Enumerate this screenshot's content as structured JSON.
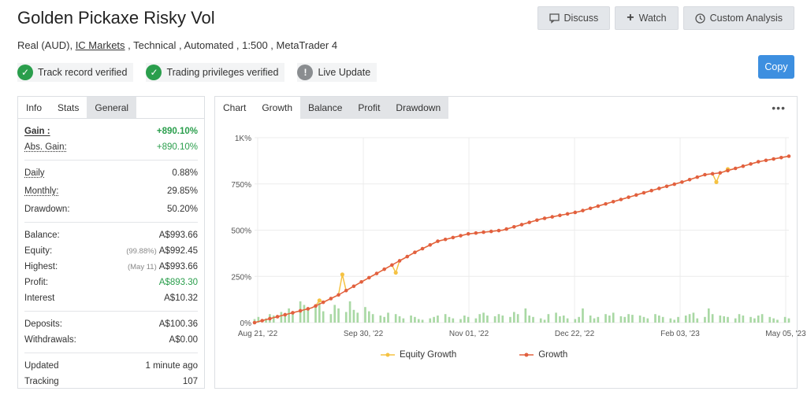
{
  "header": {
    "title": "Golden Pickaxe Risky Vol",
    "subtitle_pre": "Real (AUD), ",
    "broker": "IC Markets",
    "subtitle_post": " , Technical , Automated , 1:500 , MetaTrader 4"
  },
  "buttons": {
    "discuss": "Discuss",
    "watch": "Watch",
    "custom_analysis": "Custom Analysis",
    "copy": "Copy"
  },
  "badges": [
    {
      "label": "Track record verified"
    },
    {
      "label": "Trading privileges verified"
    },
    {
      "label": "Live Update"
    }
  ],
  "info_tabs": [
    "Info",
    "Stats",
    "General"
  ],
  "stats": {
    "gain_label": "Gain :",
    "gain": "+890.10%",
    "abs_gain_label": "Abs. Gain:",
    "abs_gain": "+890.10%",
    "daily_label": "Daily",
    "daily": "0.88%",
    "monthly_label": "Monthly:",
    "monthly": "29.85%",
    "drawdown_label": "Drawdown:",
    "drawdown": "50.20%",
    "balance_label": "Balance:",
    "balance": "A$993.66",
    "equity_label": "Equity:",
    "equity_note": "(99.88%)",
    "equity": "A$992.45",
    "highest_label": "Highest:",
    "highest_note": "(May 11)",
    "highest": "A$993.66",
    "profit_label": "Profit:",
    "profit": "A$893.30",
    "interest_label": "Interest",
    "interest": "A$10.32",
    "deposits_label": "Deposits:",
    "deposits": "A$100.36",
    "withdrawals_label": "Withdrawals:",
    "withdrawals": "A$0.00",
    "updated_label": "Updated",
    "updated": "1 minute ago",
    "tracking_label": "Tracking",
    "tracking": "107"
  },
  "chart_tabs": [
    "Chart",
    "Growth",
    "Balance",
    "Profit",
    "Drawdown"
  ],
  "chart_data": {
    "type": "line",
    "y_ticks": [
      "1K%",
      "750%",
      "500%",
      "250%",
      "0%"
    ],
    "ylim": [
      0,
      1000
    ],
    "x_ticks": [
      "Aug 21, '22",
      "Sep 30, '22",
      "Nov 01, '22",
      "Dec 22, '22",
      "Feb 03, '23",
      "May 05, '23"
    ],
    "series": [
      {
        "name": "Equity Growth",
        "color": "#f5c242"
      },
      {
        "name": "Growth",
        "color": "#e2603f"
      }
    ],
    "growth_keypoints": [
      [
        0,
        0
      ],
      [
        15,
        80
      ],
      [
        22,
        150
      ],
      [
        28,
        220
      ],
      [
        35,
        300
      ],
      [
        42,
        380
      ],
      [
        48,
        440
      ],
      [
        56,
        480
      ],
      [
        65,
        500
      ],
      [
        75,
        560
      ],
      [
        85,
        600
      ],
      [
        95,
        660
      ],
      [
        105,
        720
      ],
      [
        112,
        760
      ],
      [
        118,
        800
      ],
      [
        122,
        810
      ],
      [
        132,
        870
      ],
      [
        140,
        900
      ]
    ],
    "equity_dips": [
      [
        17,
        120
      ],
      [
        23,
        260
      ],
      [
        37,
        270
      ],
      [
        121,
        760
      ],
      [
        124,
        830
      ]
    ],
    "bars": [
      5,
      8,
      6,
      12,
      10,
      15,
      9,
      20,
      14,
      30,
      25,
      18,
      22,
      28,
      16,
      12,
      25,
      20,
      15,
      30,
      18,
      14,
      22,
      16,
      12,
      10,
      8,
      14,
      12,
      9,
      6,
      10,
      8,
      5,
      4,
      6,
      8,
      10,
      12,
      8,
      6,
      5,
      10,
      8,
      6,
      12,
      14,
      10,
      9,
      12,
      10,
      8,
      15,
      12,
      20,
      10,
      8,
      6,
      4,
      12,
      14,
      9,
      10,
      6,
      5,
      8,
      20,
      10,
      6,
      8,
      12,
      10,
      14,
      9,
      8,
      12,
      11,
      10,
      8,
      6,
      12,
      10,
      8,
      6,
      4,
      8,
      10,
      12,
      14,
      6,
      8,
      20,
      12,
      10,
      9,
      8,
      6,
      12,
      10,
      8,
      6,
      10,
      12,
      8,
      6,
      4,
      8,
      6
    ]
  },
  "legend": {
    "equity": "Equity Growth",
    "growth": "Growth"
  }
}
